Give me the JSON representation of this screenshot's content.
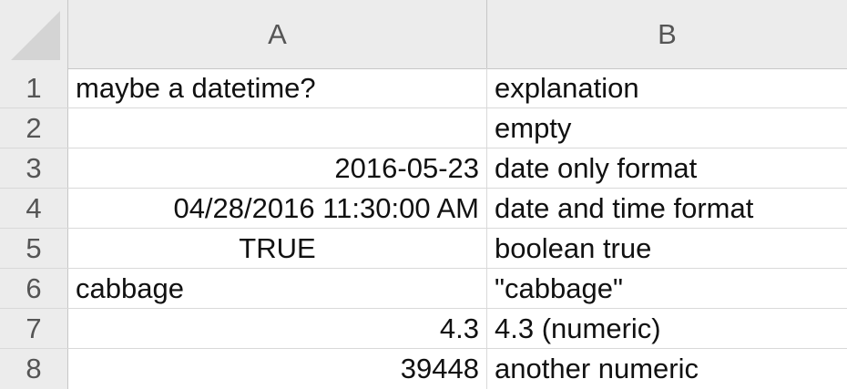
{
  "columns": [
    "A",
    "B"
  ],
  "rows": [
    {
      "num": "1",
      "a": "maybe a datetime?",
      "a_align": "left",
      "b": "explanation"
    },
    {
      "num": "2",
      "a": "",
      "a_align": "left",
      "b": "empty"
    },
    {
      "num": "3",
      "a": "2016-05-23",
      "a_align": "right",
      "b": "date only format"
    },
    {
      "num": "4",
      "a": "04/28/2016 11:30:00 AM",
      "a_align": "right",
      "b": "date and time format"
    },
    {
      "num": "5",
      "a": "TRUE",
      "a_align": "center",
      "b": "boolean true"
    },
    {
      "num": "6",
      "a": "cabbage",
      "a_align": "left",
      "b": "\"cabbage\""
    },
    {
      "num": "7",
      "a": "4.3",
      "a_align": "right",
      "b": "4.3 (numeric)"
    },
    {
      "num": "8",
      "a": "39448",
      "a_align": "right",
      "b": "another numeric"
    }
  ]
}
